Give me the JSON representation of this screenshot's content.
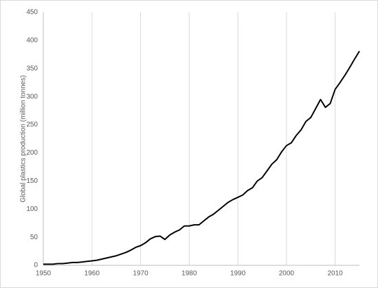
{
  "chart_data": {
    "type": "line",
    "y_label": "Global plastics production (million tonnes)",
    "x": [
      1950,
      1951,
      1952,
      1953,
      1954,
      1955,
      1956,
      1957,
      1958,
      1959,
      1960,
      1961,
      1962,
      1963,
      1964,
      1965,
      1966,
      1967,
      1968,
      1969,
      1970,
      1971,
      1972,
      1973,
      1974,
      1975,
      1976,
      1977,
      1978,
      1979,
      1980,
      1981,
      1982,
      1983,
      1984,
      1985,
      1986,
      1987,
      1988,
      1989,
      1990,
      1991,
      1992,
      1993,
      1994,
      1995,
      1996,
      1997,
      1998,
      1999,
      2000,
      2001,
      2002,
      2003,
      2004,
      2005,
      2006,
      2007,
      2008,
      2009,
      2010,
      2011,
      2012,
      2013,
      2014,
      2015
    ],
    "values": [
      2,
      2,
      2,
      3,
      3,
      4,
      5,
      5,
      6,
      7,
      8,
      9,
      11,
      13,
      15,
      17,
      20,
      23,
      27,
      32,
      35,
      40,
      47,
      51,
      52,
      46,
      54,
      59,
      63,
      70,
      70,
      72,
      72,
      79,
      86,
      91,
      98,
      105,
      112,
      117,
      121,
      125,
      133,
      138,
      150,
      156,
      168,
      180,
      188,
      202,
      213,
      218,
      231,
      241,
      256,
      263,
      279,
      295,
      281,
      288,
      313,
      325,
      338,
      352,
      367,
      381
    ],
    "color": "#000000",
    "xlim": [
      1950,
      2015
    ],
    "xticks": [
      1950,
      1960,
      1970,
      1980,
      1990,
      2000,
      2010
    ],
    "ylim": [
      0,
      450
    ],
    "yticks": [
      0,
      50,
      100,
      150,
      200,
      250,
      300,
      350,
      400,
      450
    ],
    "grid": "x"
  }
}
